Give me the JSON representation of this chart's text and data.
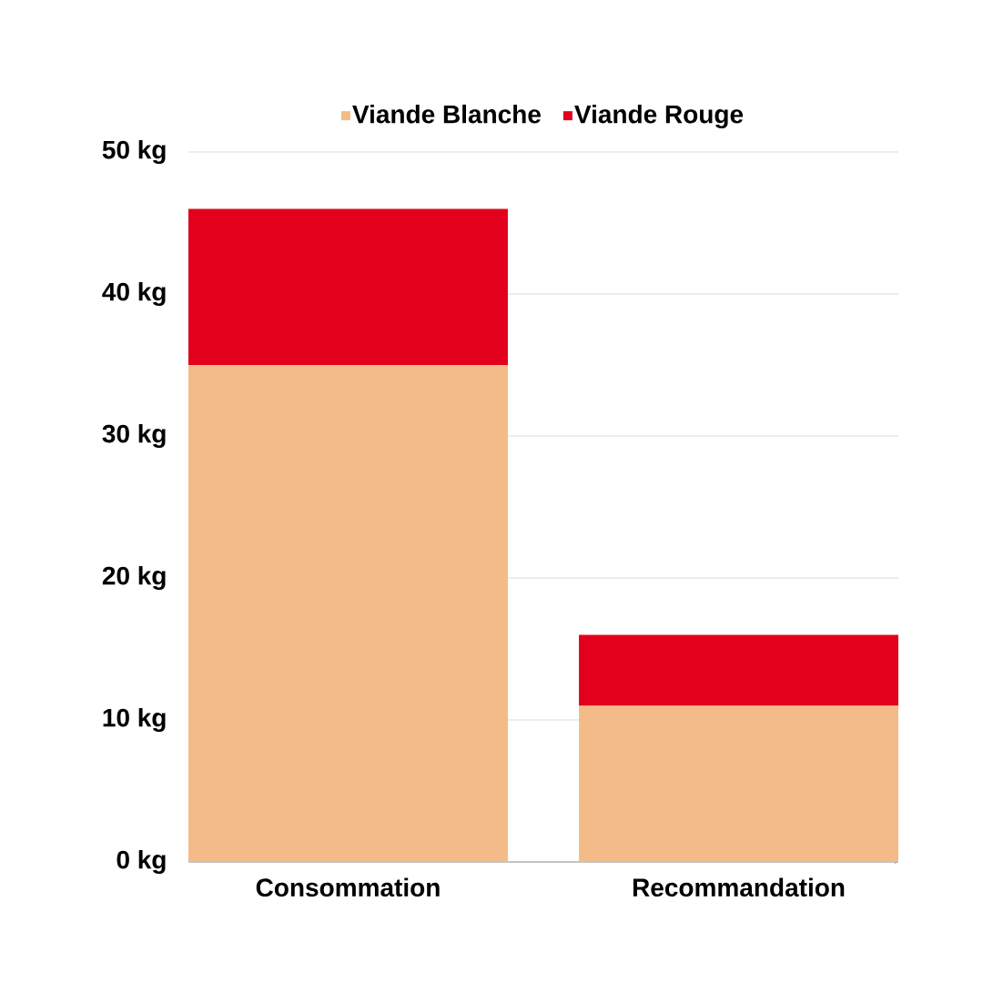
{
  "chart_data": {
    "type": "bar",
    "stacked": true,
    "categories": [
      "Consommation",
      "Recommandation"
    ],
    "series": [
      {
        "name": "Viande Blanche",
        "color": "#f3bb87",
        "values": [
          35,
          11
        ]
      },
      {
        "name": "Viande Rouge",
        "color": "#e2001d",
        "values": [
          11,
          5
        ]
      }
    ],
    "ylim": [
      0,
      50
    ],
    "yticks": [
      {
        "value": 0,
        "label": "0 kg"
      },
      {
        "value": 10,
        "label": "10 kg"
      },
      {
        "value": 20,
        "label": "20 kg"
      },
      {
        "value": 30,
        "label": "30 kg"
      },
      {
        "value": 40,
        "label": "40 kg"
      },
      {
        "value": 50,
        "label": "50 kg"
      }
    ],
    "grid": "y",
    "legend": "top"
  }
}
